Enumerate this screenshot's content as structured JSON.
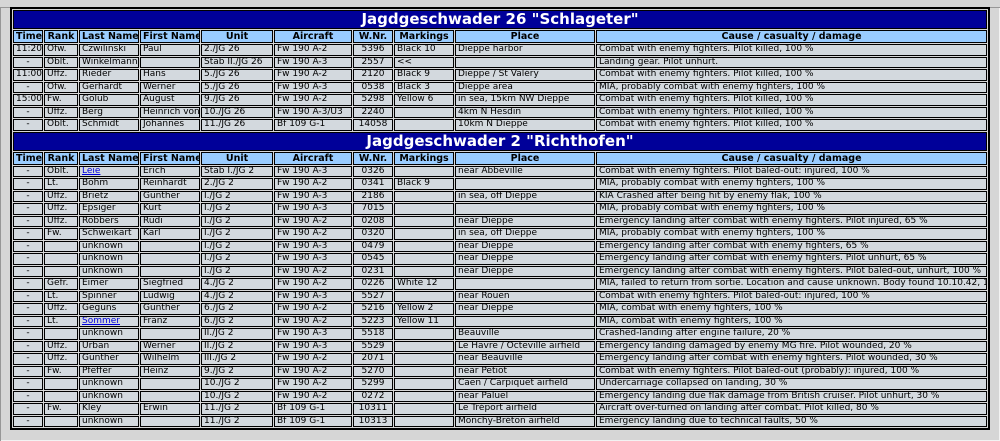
{
  "colors": {
    "title_band": "#000099",
    "header_cell": "#99ccff",
    "data_cell": "#d3d9de",
    "page_background": "#d6d6d6",
    "link": "#0000dd"
  },
  "columns": [
    "Time",
    "Rank",
    "Last Name",
    "First Name",
    "Unit",
    "Aircraft",
    "W.Nr.",
    "Markings",
    "Place",
    "Cause / casualty / damage"
  ],
  "column_aligns": [
    "center",
    "left",
    "left",
    "left",
    "left",
    "left",
    "center",
    "left",
    "left",
    "left"
  ],
  "sections": [
    {
      "title": "Jagdgeschwader 26 \"Schlageter\"",
      "rows": [
        {
          "t": "11:20",
          "rk": "Ofw.",
          "ln": "Czwilinski",
          "fn": "Paul",
          "un": "2./JG 26",
          "ac": "Fw 190 A-2",
          "wn": "5396",
          "mk": "Black 10",
          "pl": "Dieppe harbor",
          "ca": "Combat with enemy fighters. Pilot killed, 100 %"
        },
        {
          "t": "-",
          "rk": "Oblt.",
          "ln": "Winkelmann",
          "fn": "",
          "un": "Stab II./JG 26",
          "ac": "Fw 190 A-3",
          "wn": "2557",
          "mk": "<<",
          "pl": "",
          "ca": "Landing gear. Pilot unhurt."
        },
        {
          "t": "11:00",
          "rk": "Uffz.",
          "ln": "Rieder",
          "fn": "Hans",
          "un": "5./JG 26",
          "ac": "Fw 190 A-2",
          "wn": "2120",
          "mk": "Black 9",
          "pl": "Dieppe / St Valéry",
          "ca": "Combat with enemy fighters. Pilot killed, 100 %"
        },
        {
          "t": "-",
          "rk": "Ofw.",
          "ln": "Gerhardt",
          "fn": "Werner",
          "un": "5./JG 26",
          "ac": "Fw 190 A-3",
          "wn": "0538",
          "mk": "Black 3",
          "pl": "Dieppe area",
          "ca": "MIA, probably combat with enemy fighters, 100 %"
        },
        {
          "t": "15:00",
          "rk": "Fw.",
          "ln": "Golub",
          "fn": "August",
          "un": "9./JG 26",
          "ac": "Fw 190 A-2",
          "wn": "5298",
          "mk": "Yellow 6",
          "pl": "in sea, 15km NW Dieppe",
          "ca": "Combat with enemy fighters. Pilot killed, 100 %"
        },
        {
          "t": "-",
          "rk": "Uffz.",
          "ln": "Berg",
          "fn": "Heinrich von",
          "un": "10./JG 26",
          "ac": "Fw 190 A-3/U3",
          "wn": "2240",
          "mk": "",
          "pl": "4km N Hesdin",
          "ca": "Combat with enemy fighters. Pilot killed, 100 %"
        },
        {
          "t": "-",
          "rk": "Oblt.",
          "ln": "Schmidt",
          "fn": "Johannes",
          "un": "11./JG 26",
          "ac": "Bf 109 G-1",
          "wn": "14058",
          "mk": "",
          "pl": "10km N Dieppe",
          "ca": "Combat with enemy fighters. Pilot killed, 100 %"
        }
      ]
    },
    {
      "title": "Jagdgeschwader 2 \"Richthofen\"",
      "rows": [
        {
          "t": "-",
          "rk": "Oblt.",
          "ln": "Leie",
          "link": true,
          "fn": "Erich",
          "un": "Stab I./JG 2",
          "ac": "Fw 190 A-3",
          "wn": "0326",
          "mk": "",
          "pl": "near Abbeville",
          "ca": "Combat with enemy fighters. Pilot baled-out: injured, 100 %"
        },
        {
          "t": "-",
          "rk": "Lt.",
          "ln": "Böhm",
          "fn": "Reinhardt",
          "un": "2./JG 2",
          "ac": "Fw 190 A-2",
          "wn": "0341",
          "mk": "Black 9",
          "pl": "",
          "ca": "MIA, probably combat with enemy fighters, 100 %"
        },
        {
          "t": "-",
          "rk": "Uffz.",
          "ln": "Brietz",
          "fn": "Günther",
          "un": "I./JG 2",
          "ac": "Fw 190 A-3",
          "wn": "2186",
          "mk": "",
          "pl": "in sea, off Dieppe",
          "ca": "KIA Crashed after being hit by enemy flak, 100 %"
        },
        {
          "t": "-",
          "rk": "Uffz.",
          "ln": "Epsiger",
          "fn": "Kurt",
          "un": "I./JG 2",
          "ac": "Fw 190 A-3",
          "wn": "7015",
          "mk": "",
          "pl": "",
          "ca": "MIA, probably combat with enemy fighters, 100 %"
        },
        {
          "t": "-",
          "rk": "Uffz.",
          "ln": "Röbbers",
          "fn": "Rudi",
          "un": "I./JG 2",
          "ac": "Fw 190 A-2",
          "wn": "0208",
          "mk": "",
          "pl": "near Dieppe",
          "ca": "Emergency landing after combat with enemy fighters. Pilot injured, 65 %"
        },
        {
          "t": "-",
          "rk": "Fw.",
          "ln": "Schweikart",
          "fn": "Karl",
          "un": "I./JG 2",
          "ac": "Fw 190 A-2",
          "wn": "0320",
          "mk": "",
          "pl": "in sea, off Dieppe",
          "ca": "MIA, probably combat with enemy fighters, 100 %"
        },
        {
          "t": "-",
          "rk": "",
          "ln": "unknown",
          "fn": "",
          "un": "I./JG 2",
          "ac": "Fw 190 A-3",
          "wn": "0479",
          "mk": "",
          "pl": "near Dieppe",
          "ca": "Emergency landing after combat with enemy fighters, 65 %"
        },
        {
          "t": "-",
          "rk": "",
          "ln": "unknown",
          "fn": "",
          "un": "I./JG 2",
          "ac": "Fw 190 A-3",
          "wn": "0545",
          "mk": "",
          "pl": "near Dieppe",
          "ca": "Emergency landing after combat with enemy fighters. Pilot unhurt, 65 %"
        },
        {
          "t": "-",
          "rk": "",
          "ln": "unknown",
          "fn": "",
          "un": "I./JG 2",
          "ac": "Fw 190 A-2",
          "wn": "0231",
          "mk": "",
          "pl": "near Dieppe",
          "ca": "Emergency landing after combat with enemy fighters. Pilot baled-out, unhurt, 100 %"
        },
        {
          "t": "-",
          "rk": "Gefr.",
          "ln": "Eimer",
          "fn": "Siegfried",
          "un": "4./JG 2",
          "ac": "Fw 190 A-2",
          "wn": "0226",
          "mk": "White 12",
          "pl": "",
          "ca": "MIA, failed to return from sortie. Location and cause unknown. Body found 10.10.42, 100 %"
        },
        {
          "t": "-",
          "rk": "Lt.",
          "ln": "Spinner",
          "fn": "Ludwig",
          "un": "4./JG 2",
          "ac": "Fw 190 A-3",
          "wn": "5527",
          "mk": "",
          "pl": "near Rouen",
          "ca": "Combat with enemy fighters. Pilot baled-out: injured, 100 %"
        },
        {
          "t": "-",
          "rk": "Uffz.",
          "ln": "Geguns",
          "fn": "Günther",
          "un": "6./JG 2",
          "ac": "Fw 190 A-2",
          "wn": "5216",
          "mk": "Yellow 2",
          "pl": "near Dieppe",
          "ca": "MIA, combat with enemy fighters, 100 %"
        },
        {
          "t": "-",
          "rk": "Lt.",
          "ln": "Sommer",
          "link": true,
          "fn": "Franz",
          "un": "6./JG 2",
          "ac": "Fw 190 A-2",
          "wn": "5223",
          "mk": "Yellow 11",
          "pl": "",
          "ca": "MIA, combat with enemy fighters, 100 %"
        },
        {
          "t": "-",
          "rk": "",
          "ln": "unknown",
          "fn": "",
          "un": "II./JG 2",
          "ac": "Fw 190 A-3",
          "wn": "5518",
          "mk": "",
          "pl": "Beauville",
          "ca": "Crashed-landing after engine failure, 20 %"
        },
        {
          "t": "-",
          "rk": "Uffz.",
          "ln": "Urban",
          "fn": "Werner",
          "un": "II./JG 2",
          "ac": "Fw 190 A-3",
          "wn": "5529",
          "mk": "",
          "pl": "Le Havre / Octeville airfield",
          "ca": "Emergency landing damaged by enemy MG fire. Pilot wounded, 20 %"
        },
        {
          "t": "-",
          "rk": "Uffz.",
          "ln": "Günther",
          "fn": "Wilhelm",
          "un": "III./JG 2",
          "ac": "Fw 190 A-2",
          "wn": "2071",
          "mk": "",
          "pl": "near Beauville",
          "ca": "Emergency landing after combat with enemy fighters. Pilot wounded, 30 %"
        },
        {
          "t": "-",
          "rk": "Fw.",
          "ln": "Pfeffer",
          "fn": "Heinz",
          "un": "9./JG 2",
          "ac": "Fw 190 A-2",
          "wn": "5270",
          "mk": "",
          "pl": "near Petiot",
          "ca": "Combat with enemy fighters. Pilot baled-out (probably): injured, 100 %"
        },
        {
          "t": "-",
          "rk": "",
          "ln": "unknown",
          "fn": "",
          "un": "10./JG 2",
          "ac": "Fw 190 A-2",
          "wn": "5299",
          "mk": "",
          "pl": "Caen / Carpiquet airfield",
          "ca": "Undercarriage collapsed on landing, 30 %"
        },
        {
          "t": "-",
          "rk": "",
          "ln": "unknown",
          "fn": "",
          "un": "10./JG 2",
          "ac": "Fw 190 A-2",
          "wn": "0272",
          "mk": "",
          "pl": "near Paluel",
          "ca": "Emergency landing due flak damage from British cruiser. Pilot unhurt, 30 %"
        },
        {
          "t": "-",
          "rk": "Fw.",
          "ln": "Kley",
          "fn": "Erwin",
          "un": "11./JG 2",
          "ac": "Bf 109 G-1",
          "wn": "10311",
          "mk": "",
          "pl": "Le Tréport airfield",
          "ca": "Aircraft over-turned on landing after combat. Pilot killed, 80 %"
        },
        {
          "t": "-",
          "rk": "",
          "ln": "unknown",
          "fn": "",
          "un": "11./JG 2",
          "ac": "Bf 109 G-1",
          "wn": "10313",
          "mk": "",
          "pl": "Monchy-Bréton airfield",
          "ca": "Emergency landing due to technical faults, 50 %"
        }
      ]
    }
  ]
}
